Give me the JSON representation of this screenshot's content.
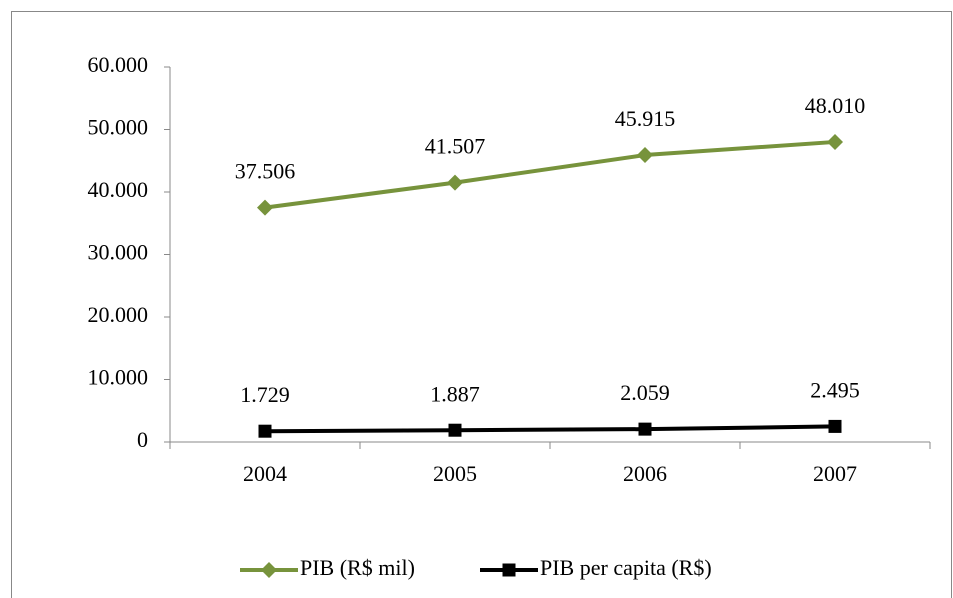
{
  "chart_data": {
    "type": "line",
    "categories": [
      "2004",
      "2005",
      "2006",
      "2007"
    ],
    "series": [
      {
        "name": "PIB (R$ mil)",
        "color": "#77933c",
        "marker": "diamond",
        "values": [
          37506,
          41507,
          45915,
          48010
        ],
        "value_labels": [
          "37.506",
          "41.507",
          "45.915",
          "48.010"
        ]
      },
      {
        "name": "PIB per capita (R$)",
        "color": "#000000",
        "marker": "square",
        "values": [
          1729,
          1887,
          2059,
          2495
        ],
        "value_labels": [
          "1.729",
          "1.887",
          "2.059",
          "2.495"
        ]
      }
    ],
    "ylim": [
      0,
      60000
    ],
    "yticks": [
      0,
      {
        "value": 10000,
        "label": "10.000"
      },
      {
        "value": 20000,
        "label": "20.000"
      },
      {
        "value": 30000,
        "label": "30.000"
      },
      {
        "value": 40000,
        "label": "40.000"
      },
      {
        "value": 50000,
        "label": "50.000"
      },
      {
        "value": 60000,
        "label": "60.000"
      }
    ],
    "grid": false,
    "legend": "bottom"
  }
}
